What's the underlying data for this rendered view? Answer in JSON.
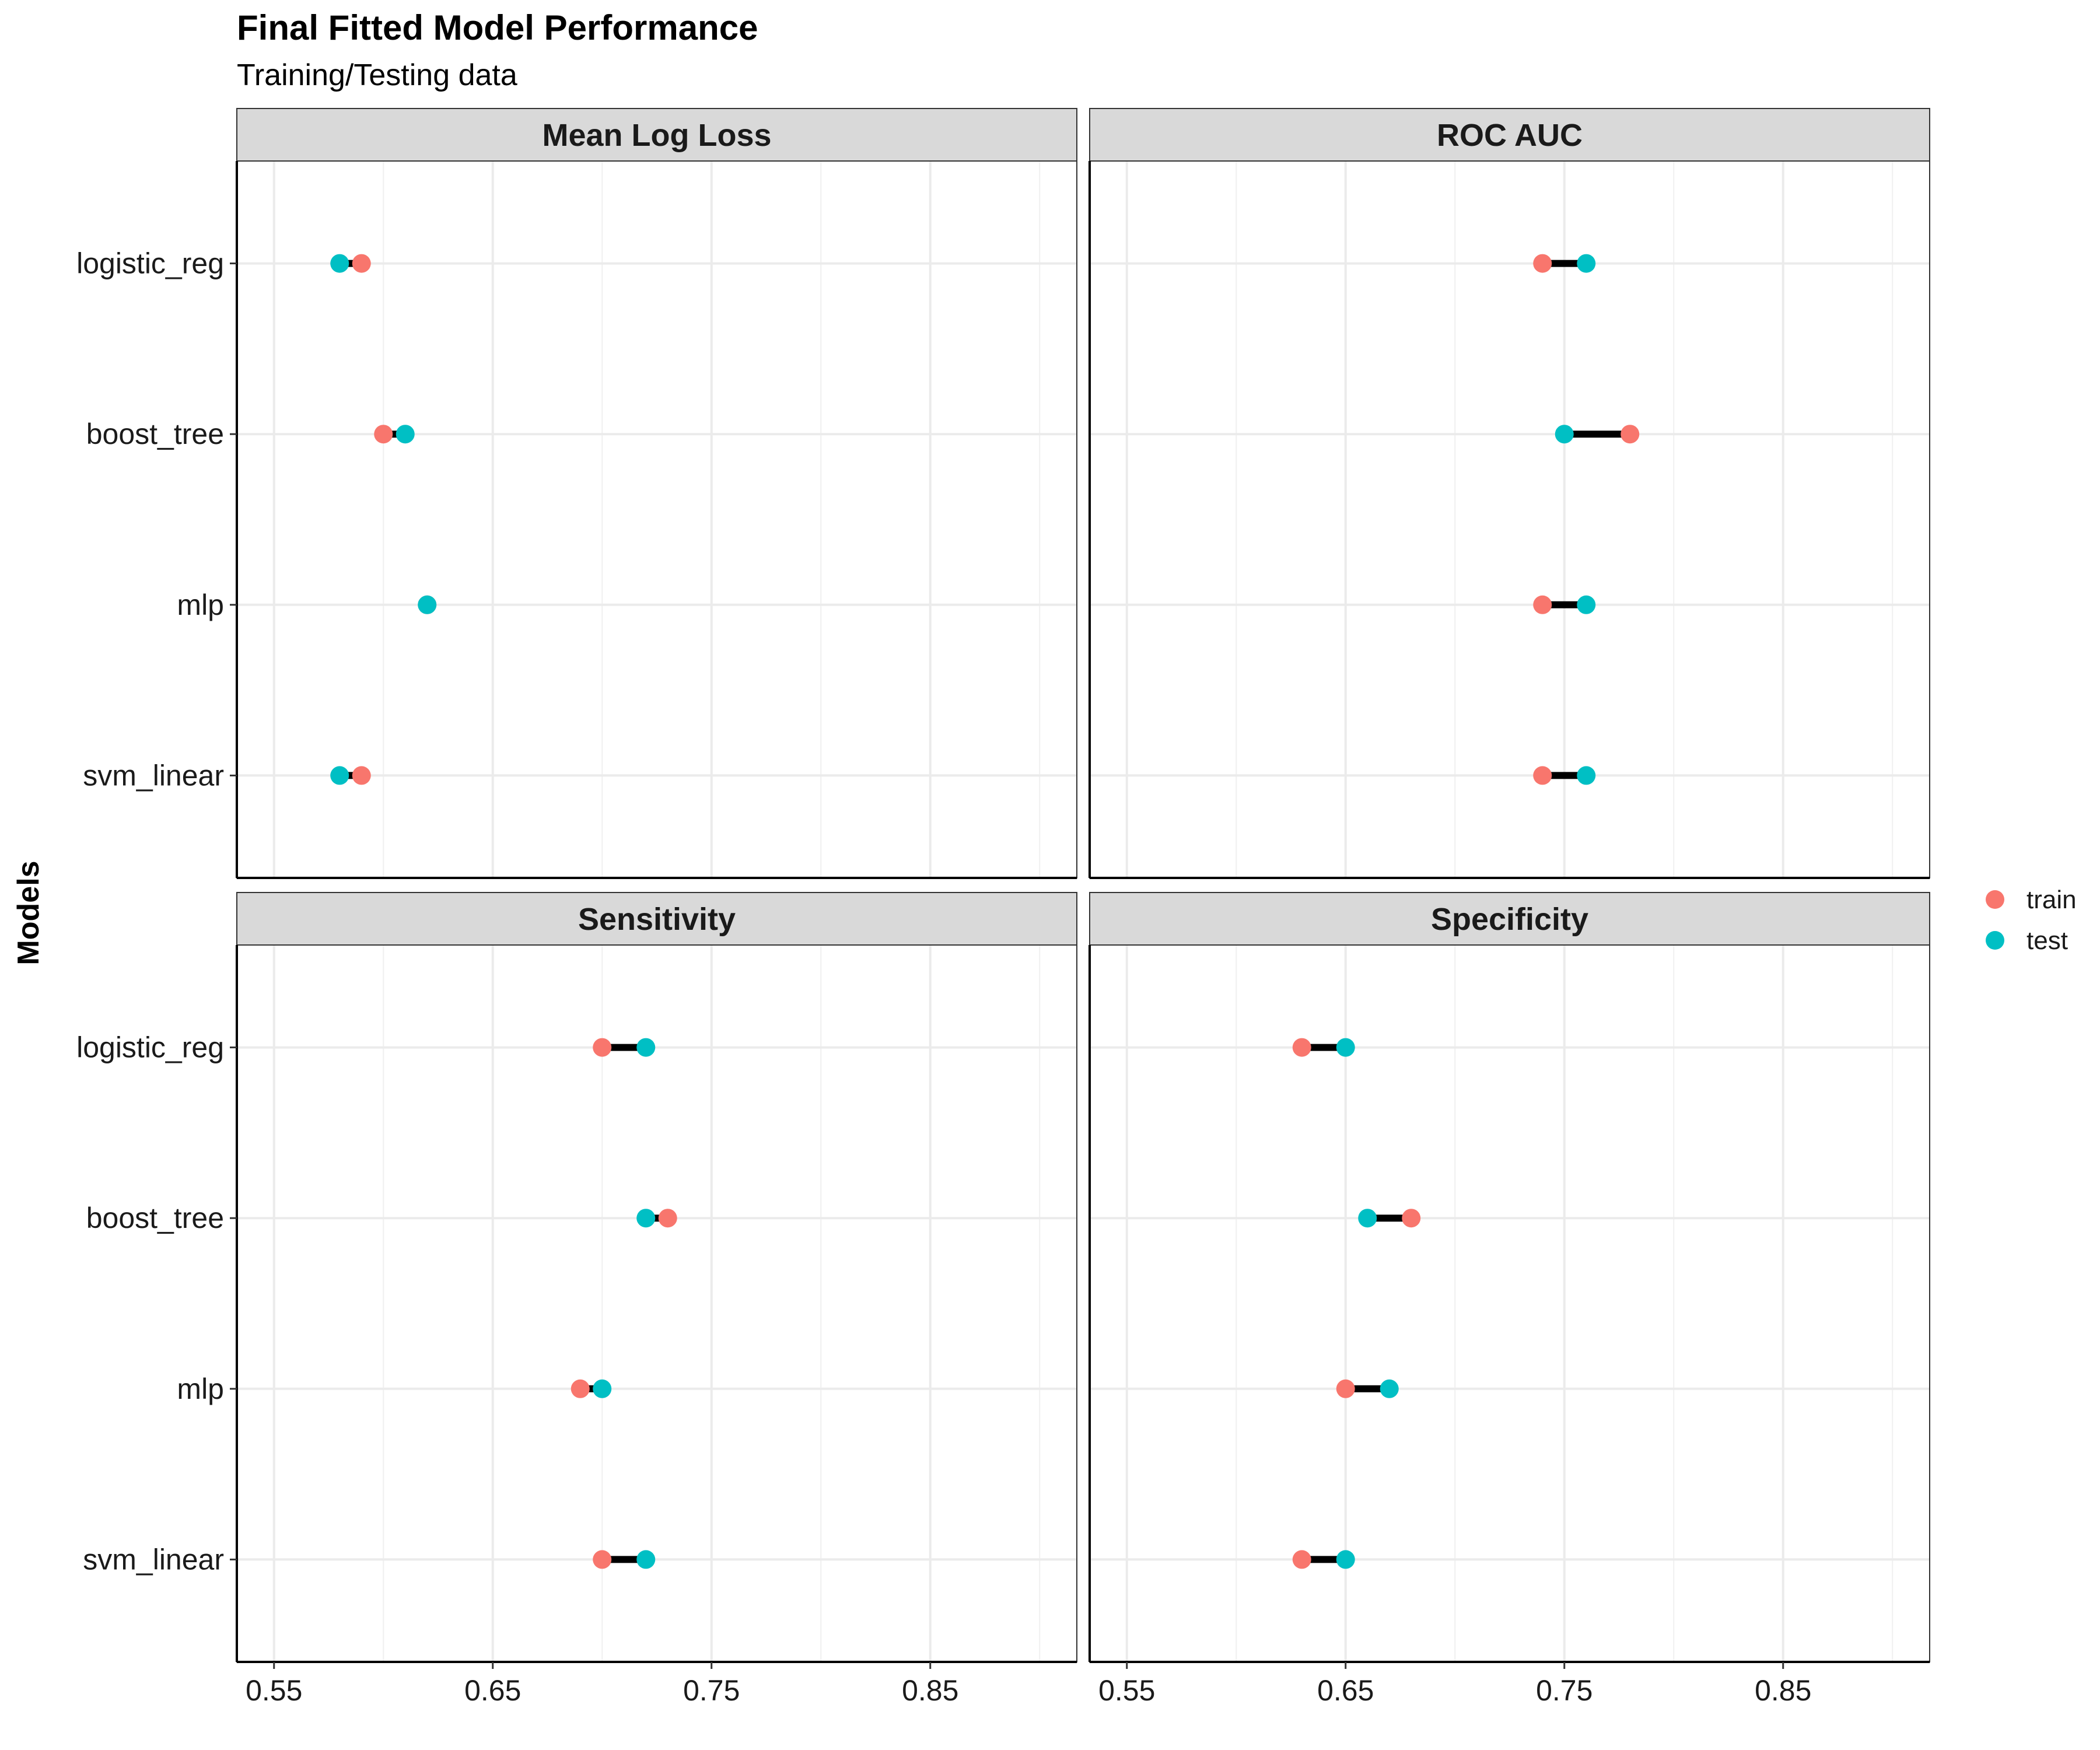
{
  "chart_data": {
    "type": "dumbbell",
    "title": "Final Fitted Model Performance",
    "subtitle": "Training/Testing data",
    "ylabel": "Models",
    "xlabel": "",
    "categories": [
      "logistic_reg",
      "boost_tree",
      "mlp",
      "svm_linear"
    ],
    "x_ticks": [
      0.55,
      0.65,
      0.75,
      0.85
    ],
    "x_tick_labels": [
      "0.55",
      "0.65",
      "0.75",
      "0.85"
    ],
    "xlim": [
      0.533,
      0.917
    ],
    "grid": true,
    "legend": {
      "placement": "right",
      "entries": [
        {
          "name": "train",
          "color": "#F8766D"
        },
        {
          "name": "test",
          "color": "#00BFC4"
        }
      ]
    },
    "panels": [
      {
        "name": "Mean Log Loss",
        "series": [
          {
            "name": "train",
            "values": [
              0.59,
              0.6,
              0.62,
              0.59
            ]
          },
          {
            "name": "test",
            "values": [
              0.58,
              0.61,
              0.62,
              0.58
            ]
          }
        ]
      },
      {
        "name": "ROC AUC",
        "series": [
          {
            "name": "train",
            "values": [
              0.74,
              0.78,
              0.74,
              0.74
            ]
          },
          {
            "name": "test",
            "values": [
              0.76,
              0.75,
              0.76,
              0.76
            ]
          }
        ]
      },
      {
        "name": "Sensitivity",
        "series": [
          {
            "name": "train",
            "values": [
              0.7,
              0.73,
              0.69,
              0.7
            ]
          },
          {
            "name": "test",
            "values": [
              0.72,
              0.72,
              0.7,
              0.72
            ]
          }
        ]
      },
      {
        "name": "Specificity",
        "series": [
          {
            "name": "train",
            "values": [
              0.63,
              0.68,
              0.65,
              0.63
            ]
          },
          {
            "name": "test",
            "values": [
              0.65,
              0.66,
              0.67,
              0.65
            ]
          }
        ]
      }
    ]
  }
}
